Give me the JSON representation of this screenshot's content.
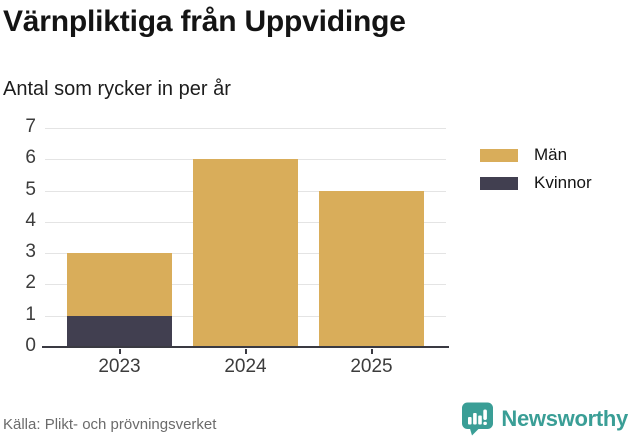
{
  "header": {
    "title": "Värnpliktiga från Uppvidinge",
    "subtitle": "Antal som rycker in per år"
  },
  "chart_data": {
    "type": "bar",
    "stacked": true,
    "title": "Värnpliktiga från Uppvidinge",
    "subtitle": "Antal som rycker in per år",
    "categories": [
      "2023",
      "2024",
      "2025"
    ],
    "series": [
      {
        "name": "Män",
        "color": "#d9ad5a",
        "values": [
          2,
          6,
          5
        ]
      },
      {
        "name": "Kvinnor",
        "color": "#413f50",
        "values": [
          1,
          0,
          0
        ]
      }
    ],
    "totals": [
      3,
      6,
      5
    ],
    "xlabel": "",
    "ylabel": "",
    "ylim": [
      0,
      7
    ],
    "yticks": [
      0,
      1,
      2,
      3,
      4,
      5,
      6,
      7
    ],
    "grid": true,
    "legend_position": "right",
    "colors": {
      "gridline": "#e4e4e4",
      "axis": "#3a3a42",
      "tick_label": "#3c3c3c"
    }
  },
  "footer": {
    "source": "Källa: Plikt- och prövningsverket",
    "brand": "Newsworthy",
    "brand_color": "#3a9e96"
  },
  "icons": {
    "brand_icon": "newsworthy-chart-bubble-icon"
  }
}
